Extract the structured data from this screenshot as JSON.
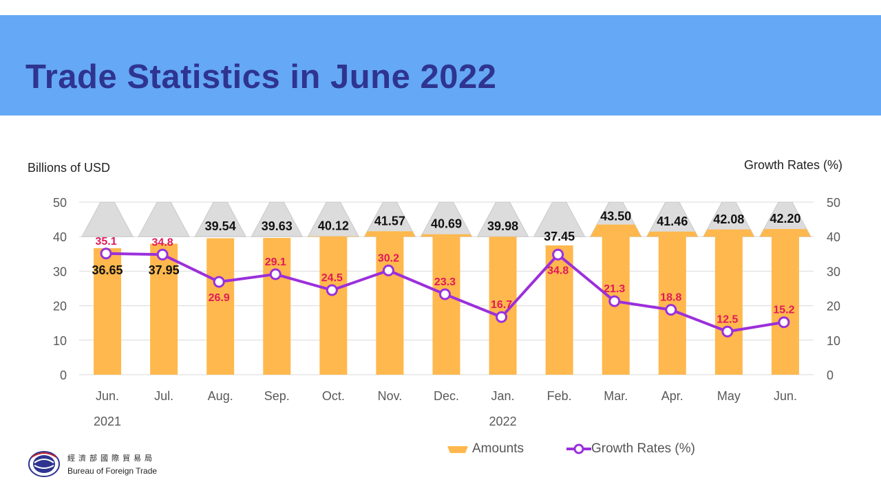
{
  "header": {
    "title": "Trade Statistics in June 2022"
  },
  "colors": {
    "banner": "#65a8f5",
    "title": "#2e3490",
    "bar": "#ffb84d",
    "bar_top": "#dcdcdc",
    "line": "#9b2fdb",
    "growth_label": "#e0195a",
    "amount_label": "#111111"
  },
  "chart_data": {
    "type": "bar+line",
    "categories": [
      "Jun.",
      "Jul.",
      "Aug.",
      "Sep.",
      "Oct.",
      "Nov.",
      "Dec.",
      "Jan.",
      "Feb.",
      "Mar.",
      "Apr.",
      "May",
      "Jun."
    ],
    "year_labels": [
      {
        "label": "2021",
        "category_index": 0
      },
      {
        "label": "2022",
        "category_index": 7
      }
    ],
    "left_axis": {
      "label": "Billions of USD",
      "range": [
        0,
        50
      ],
      "ticks": [
        0,
        10,
        20,
        30,
        40,
        50
      ]
    },
    "right_axis": {
      "label": "Growth Rates (%)",
      "range": [
        0,
        50
      ],
      "ticks": [
        0,
        10,
        20,
        30,
        40,
        50
      ]
    },
    "series": [
      {
        "name": "Amounts",
        "type": "bar",
        "values": [
          36.65,
          37.95,
          39.54,
          39.63,
          40.12,
          41.57,
          40.69,
          39.98,
          37.45,
          43.5,
          41.46,
          42.08,
          42.2
        ],
        "labels": [
          "36.65",
          "37.95",
          "39.54",
          "39.63",
          "40.12",
          "41.57",
          "40.69",
          "39.98",
          "37.45",
          "43.50",
          "41.46",
          "42.08",
          "42.20"
        ]
      },
      {
        "name": "Growth Rates (%)",
        "type": "line",
        "axis": "right",
        "values": [
          35.1,
          34.8,
          26.9,
          29.1,
          24.5,
          30.2,
          23.3,
          16.7,
          34.8,
          21.3,
          18.8,
          12.5,
          15.2
        ],
        "labels": [
          "35.1",
          "34.8",
          "26.9",
          "29.1",
          "24.5",
          "30.2",
          "23.3",
          "16.7",
          "34.8",
          "21.3",
          "18.8",
          "12.5",
          "15.2"
        ]
      }
    ],
    "legend": {
      "position": "bottom",
      "items": [
        "Amounts",
        "Growth Rates (%)"
      ]
    },
    "grid": true
  },
  "footer": {
    "org_cn": "經濟部國際貿易局",
    "org_en": "Bureau of Foreign Trade"
  }
}
